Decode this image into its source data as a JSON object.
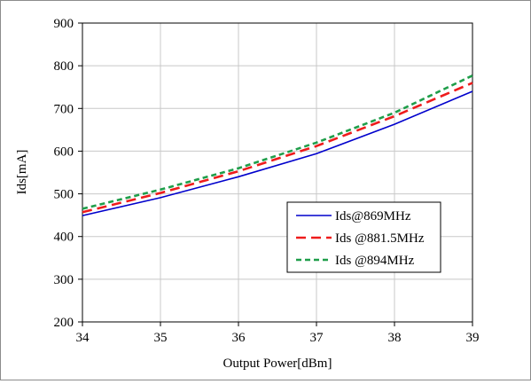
{
  "chart_data": {
    "type": "line",
    "title": "",
    "xlabel": "Output Power[dBm]",
    "ylabel": "Ids[mA]",
    "xlim": [
      34,
      39
    ],
    "ylim": [
      200,
      900
    ],
    "xticks": [
      34,
      35,
      36,
      37,
      38,
      39
    ],
    "yticks": [
      200,
      300,
      400,
      500,
      600,
      700,
      800,
      900
    ],
    "grid": true,
    "legend_position": "center-right",
    "x": [
      34,
      35,
      36,
      37,
      38,
      39
    ],
    "series": [
      {
        "name": "Ids@869MHz",
        "color": "#0000cc",
        "style": "solid",
        "values": [
          449,
          491,
          540,
          594,
          663,
          740
        ]
      },
      {
        "name": "Ids @881.5MHz",
        "color": "#ee1c1c",
        "style": "dashed",
        "values": [
          457,
          502,
          553,
          612,
          682,
          760
        ]
      },
      {
        "name": "Ids @894MHz",
        "color": "#1f9e4a",
        "style": "short-dashed",
        "values": [
          465,
          510,
          560,
          620,
          690,
          777
        ]
      }
    ]
  }
}
